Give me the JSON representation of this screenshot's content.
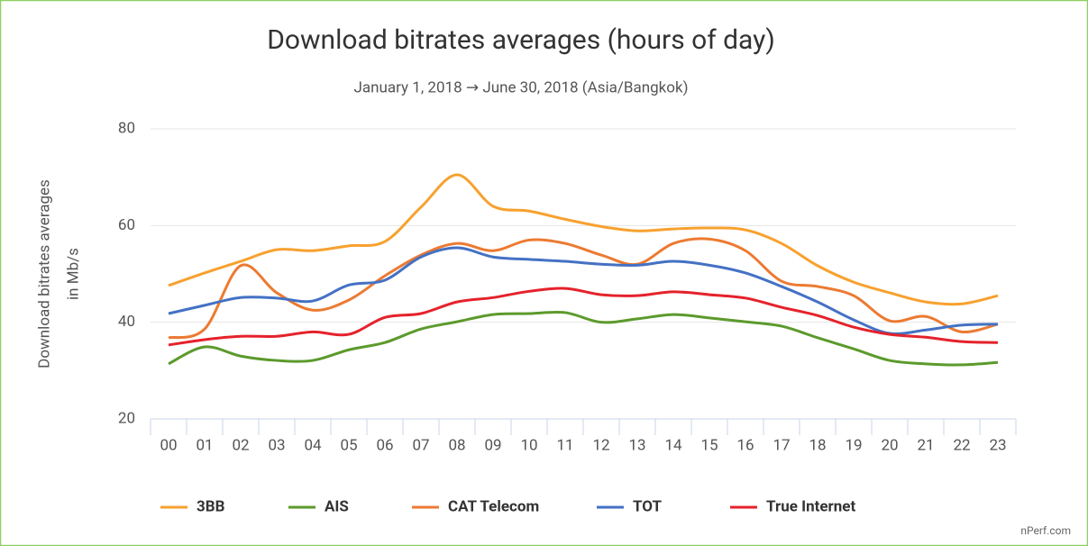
{
  "chart_data": {
    "type": "line",
    "title": "Download bitrates averages (hours of day)",
    "subtitle": "January 1, 2018 → June 30, 2018 (Asia/Bangkok)",
    "y_label": [
      "Download bitrates averages",
      "in Mb/s"
    ],
    "credit": "nPerf.com",
    "categories": [
      "00",
      "01",
      "02",
      "03",
      "04",
      "05",
      "06",
      "07",
      "08",
      "09",
      "10",
      "11",
      "12",
      "13",
      "14",
      "15",
      "16",
      "17",
      "18",
      "19",
      "20",
      "21",
      "22",
      "23"
    ],
    "ylim": [
      20,
      80
    ],
    "yticks": [
      20,
      40,
      60,
      80
    ],
    "grid": true,
    "legend": "bottom",
    "series": [
      {
        "name": "3BB",
        "color": "#f7a12f",
        "values": [
          47.6,
          50.2,
          52.6,
          55,
          54.8,
          55.8,
          56.7,
          63.8,
          70.5,
          64,
          63,
          61.3,
          59.8,
          58.9,
          59.3,
          59.5,
          59.1,
          56.3,
          51.7,
          48.3,
          46.1,
          44.2,
          43.8,
          45.5
        ]
      },
      {
        "name": "AIS",
        "color": "#5c9a2c",
        "values": [
          31.4,
          34.9,
          33,
          32.1,
          32.1,
          34.3,
          35.8,
          38.6,
          40.1,
          41.6,
          41.8,
          42,
          40,
          40.7,
          41.6,
          40.9,
          40.1,
          39.2,
          36.8,
          34.5,
          32.1,
          31.4,
          31.2,
          31.7
        ]
      },
      {
        "name": "CAT Telecom",
        "color": "#ec7a31",
        "values": [
          36.8,
          38.6,
          51.7,
          46.1,
          42.5,
          44.6,
          49.6,
          53.9,
          56.3,
          54.8,
          57,
          56.3,
          53.9,
          52,
          56.3,
          57.2,
          54.8,
          48.5,
          47.4,
          45.5,
          40.3,
          41.2,
          38,
          39.6
        ]
      },
      {
        "name": "TOT",
        "color": "#4471c4",
        "values": [
          41.8,
          43.5,
          45.1,
          45,
          44.4,
          47.7,
          48.7,
          53.5,
          55.4,
          53.5,
          53,
          52.6,
          52,
          51.8,
          52.6,
          51.8,
          50.2,
          47.4,
          44.2,
          40.5,
          37.7,
          38.4,
          39.4,
          39.6
        ]
      },
      {
        "name": "True Internet",
        "color": "#e5222b",
        "values": [
          35.3,
          36.4,
          37.1,
          37.1,
          38,
          37.5,
          41,
          41.8,
          44.2,
          45.1,
          46.4,
          47,
          45.7,
          45.5,
          46.3,
          45.7,
          45,
          43.1,
          41.4,
          39,
          37.5,
          36.9,
          36,
          35.8
        ]
      }
    ]
  }
}
